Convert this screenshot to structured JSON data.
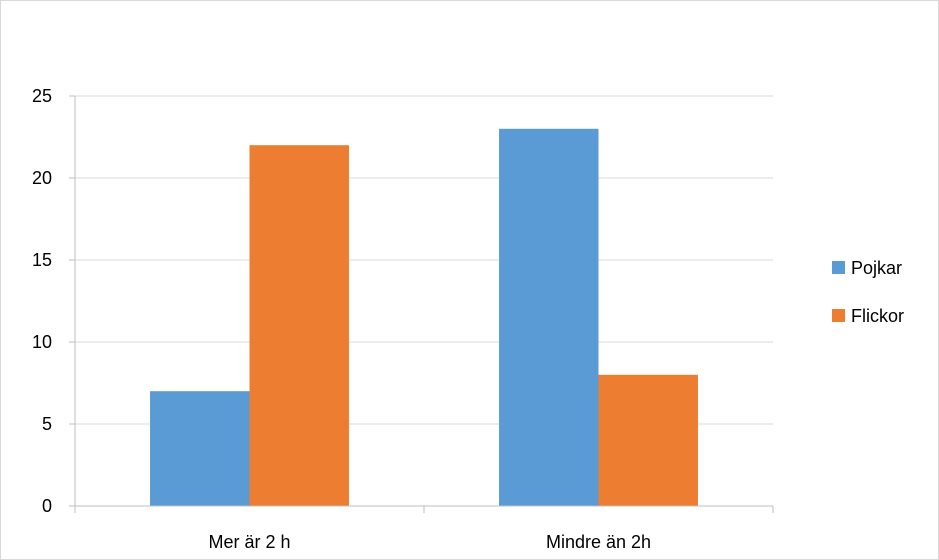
{
  "chart_data": {
    "type": "bar",
    "categories": [
      "Mer är 2 h",
      "Mindre än 2h"
    ],
    "series": [
      {
        "name": "Pojkar",
        "values": [
          7,
          23
        ],
        "color": "#5b9bd5"
      },
      {
        "name": "Flickor",
        "values": [
          22,
          8
        ],
        "color": "#ed7d31"
      }
    ],
    "yticks": [
      "0",
      "5",
      "10",
      "15",
      "20",
      "25"
    ],
    "ylim": [
      0,
      25
    ],
    "grid": true,
    "legend_position": "right",
    "gridline_color": "#d9d9d9",
    "axis_color": "#bfbfbf"
  }
}
